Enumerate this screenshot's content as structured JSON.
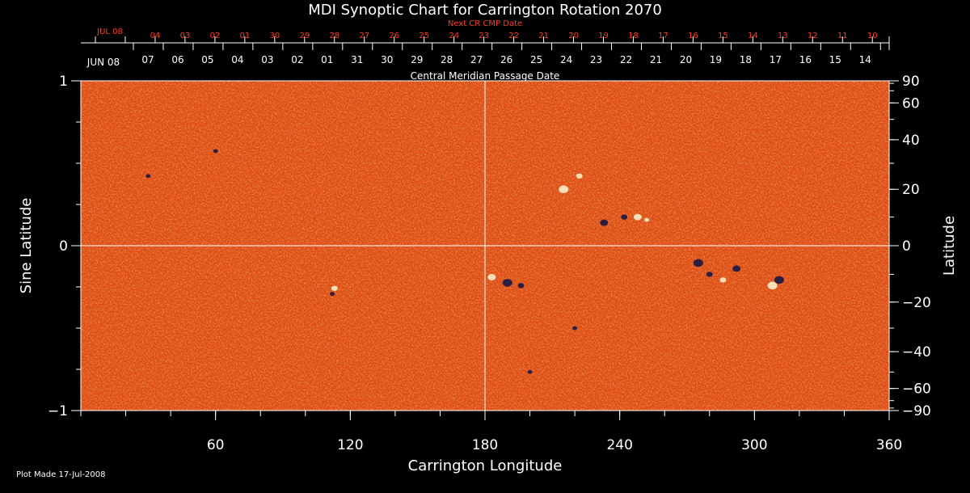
{
  "chart_data": {
    "type": "heatmap",
    "title": "MDI Synoptic Chart for Carrington Rotation 2070",
    "xlabel": "Carrington Longitude",
    "ylabel_left": "Sine Latitude",
    "ylabel_right": "Latitude",
    "xlim": [
      0,
      360
    ],
    "ylim": [
      -1,
      1
    ],
    "x_ticks": [
      60,
      120,
      180,
      240,
      300,
      360
    ],
    "y_ticks_left": [
      -1,
      0,
      1
    ],
    "y_tick_labels_left": [
      "−1",
      "0",
      "1"
    ],
    "y_ticks_right": [
      90,
      60,
      40,
      20,
      0,
      -20,
      -40,
      -60,
      -90
    ],
    "y_tick_labels_right": [
      "90",
      "60",
      "40",
      "20",
      "0",
      "−20",
      "−40",
      "−60",
      "−90"
    ],
    "top_axis": {
      "next_cr_label": "Next CR CMP Date",
      "next_cr_start": "JUL 08",
      "next_cr_dates": [
        "04",
        "03",
        "02",
        "01",
        "30",
        "29",
        "28",
        "27",
        "26",
        "25",
        "24",
        "23",
        "22",
        "21",
        "20",
        "19",
        "18",
        "17",
        "16",
        "15",
        "14",
        "13",
        "12",
        "11",
        "10"
      ],
      "cmp_label": "Central Meridian Passage Date",
      "cmp_start": "JUN 08",
      "cmp_dates": [
        "07",
        "06",
        "05",
        "04",
        "03",
        "02",
        "01",
        "31",
        "30",
        "29",
        "28",
        "27",
        "26",
        "25",
        "24",
        "23",
        "22",
        "21",
        "20",
        "19",
        "18",
        "17",
        "16",
        "15",
        "14"
      ]
    },
    "grid": "crosshair at longitude 180 and latitude 0",
    "colors": {
      "background": "#e04a10",
      "positive": "#ffffff",
      "negative": "#001050",
      "red_text": "#ff3b1e"
    }
  },
  "footer": {
    "plot_made": "Plot Made 17-Jul-2008"
  }
}
